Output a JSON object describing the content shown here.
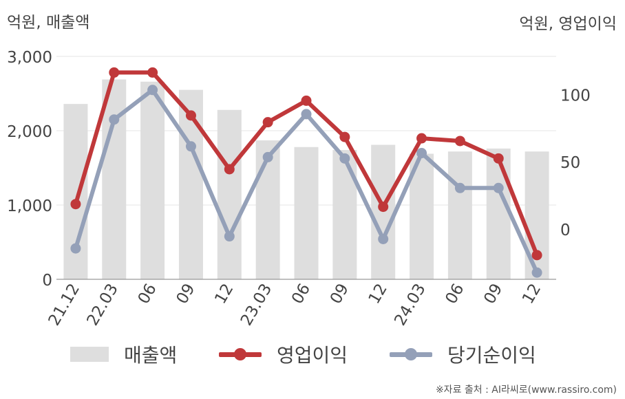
{
  "units": {
    "left": "억원, 매출액",
    "right": "억원, 영업이익"
  },
  "colors": {
    "bar": "#dedede",
    "operating_profit": "#c0383a",
    "net_profit": "#94a0b8",
    "grid": "#e6e6e6",
    "axis": "#999999"
  },
  "chart_data": {
    "type": "bar",
    "categories": [
      "21.12",
      "22.03",
      "06",
      "09",
      "12",
      "23.03",
      "06",
      "09",
      "12",
      "24.03",
      "06",
      "09",
      "12"
    ],
    "left_axis": {
      "ylim": [
        0,
        3000
      ],
      "ticks": [
        0,
        1000,
        2000,
        3000
      ],
      "tick_labels": [
        "0",
        "1,000",
        "2,000",
        "3,000"
      ]
    },
    "right_axis": {
      "ylim": [
        -37,
        129
      ],
      "ticks": [
        0,
        50,
        100
      ],
      "tick_labels": [
        "0",
        "50",
        "100"
      ]
    },
    "series": [
      {
        "name": "매출액",
        "type": "bar",
        "axis": "left",
        "values": [
          2360,
          2690,
          2660,
          2550,
          2280,
          1870,
          1780,
          1740,
          1810,
          1690,
          1720,
          1760,
          1720
        ]
      },
      {
        "name": "영업이익",
        "type": "line",
        "axis": "right",
        "values": [
          19,
          117,
          117,
          85,
          45,
          80,
          96,
          69,
          17,
          68,
          66,
          53,
          -19
        ]
      },
      {
        "name": "당기순이익",
        "type": "line",
        "axis": "right",
        "values": [
          -14,
          82,
          104,
          62,
          -5,
          54,
          86,
          53,
          -7,
          57,
          31,
          31,
          -32
        ]
      }
    ],
    "grid": true,
    "legend": "bottom"
  },
  "legend": {
    "items": [
      "매출액",
      "영업이익",
      "당기순이익"
    ]
  },
  "source": "※자료 출처 : AI라씨로(www.rassiro.com)"
}
